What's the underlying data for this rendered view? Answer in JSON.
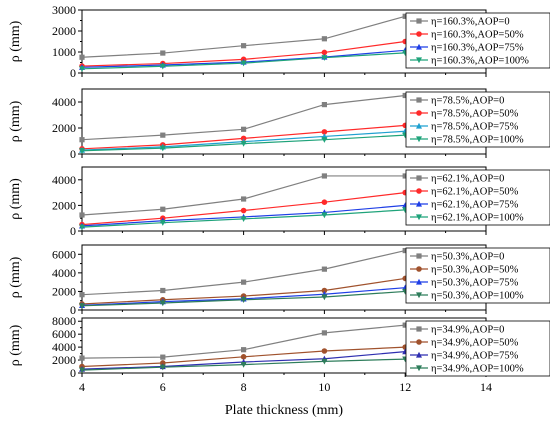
{
  "chart_data": [
    {
      "type": "line",
      "ylabel": "ρ (mm)",
      "ylim": [
        0,
        3000
      ],
      "yticks": [
        0,
        1000,
        2000,
        3000
      ],
      "x": [
        4,
        6,
        8,
        10,
        12
      ],
      "series": [
        {
          "name": "η=160.3%,AOP=0",
          "color": "#808080",
          "marker": "square",
          "values": [
            750,
            950,
            1300,
            1630,
            2700
          ]
        },
        {
          "name": "η=160.3%,AOP=50%",
          "color": "#ff2a2a",
          "marker": "circle",
          "values": [
            330,
            450,
            650,
            980,
            1500
          ]
        },
        {
          "name": "η=160.3%,AOP=75%",
          "color": "#1f3fe6",
          "marker": "triangle",
          "values": [
            270,
            380,
            520,
            760,
            1080
          ]
        },
        {
          "name": "η=160.3%,AOP=100%",
          "color": "#1fa37a",
          "marker": "tri-down",
          "values": [
            200,
            320,
            470,
            730,
            960
          ]
        }
      ]
    },
    {
      "type": "line",
      "ylabel": "ρ (mm)",
      "ylim": [
        0,
        5000
      ],
      "yticks": [
        0,
        2000,
        4000
      ],
      "x": [
        4,
        6,
        8,
        10,
        12
      ],
      "series": [
        {
          "name": "η=78.5%,AOP=0",
          "color": "#808080",
          "marker": "square",
          "values": [
            1100,
            1450,
            1900,
            3800,
            4500
          ]
        },
        {
          "name": "η=78.5%,AOP=50%",
          "color": "#ff2a2a",
          "marker": "circle",
          "values": [
            400,
            700,
            1200,
            1700,
            2200
          ]
        },
        {
          "name": "η=78.5%,AOP=75%",
          "color": "#1fa0d0",
          "marker": "triangle",
          "values": [
            300,
            550,
            950,
            1350,
            1750
          ]
        },
        {
          "name": "η=78.5%,AOP=100%",
          "color": "#1fa37a",
          "marker": "tri-down",
          "values": [
            250,
            450,
            800,
            1100,
            1450
          ]
        }
      ]
    },
    {
      "type": "line",
      "ylabel": "ρ (mm)",
      "ylim": [
        0,
        5000
      ],
      "yticks": [
        0,
        2000,
        4000
      ],
      "x": [
        4,
        6,
        8,
        10,
        12
      ],
      "series": [
        {
          "name": "η=62.1%,AOP=0",
          "color": "#808080",
          "marker": "square",
          "values": [
            1250,
            1700,
            2500,
            4300,
            4300
          ]
        },
        {
          "name": "η=62.1%,AOP=50%",
          "color": "#ff2a2a",
          "marker": "circle",
          "values": [
            500,
            1000,
            1600,
            2250,
            3000
          ]
        },
        {
          "name": "η=62.1%,AOP=75%",
          "color": "#1f3fe6",
          "marker": "triangle",
          "values": [
            400,
            800,
            1100,
            1450,
            2000
          ]
        },
        {
          "name": "η=62.1%,AOP=100%",
          "color": "#1fa37a",
          "marker": "tri-down",
          "values": [
            300,
            650,
            950,
            1250,
            1650
          ]
        }
      ]
    },
    {
      "type": "line",
      "ylabel": "ρ (mm)",
      "ylim": [
        0,
        7000
      ],
      "yticks": [
        0,
        2000,
        4000,
        6000
      ],
      "x": [
        4,
        6,
        8,
        10,
        12
      ],
      "series": [
        {
          "name": "η=50.3%,AOP=0",
          "color": "#808080",
          "marker": "square",
          "values": [
            1650,
            2100,
            3000,
            4400,
            6400
          ]
        },
        {
          "name": "η=50.3%,AOP=50%",
          "color": "#a0522d",
          "marker": "circle",
          "values": [
            650,
            1100,
            1500,
            2100,
            3400
          ]
        },
        {
          "name": "η=50.3%,AOP=75%",
          "color": "#1f3fe6",
          "marker": "triangle",
          "values": [
            500,
            900,
            1200,
            1700,
            2400
          ]
        },
        {
          "name": "η=50.3%,AOP=100%",
          "color": "#2e7d5b",
          "marker": "tri-down",
          "values": [
            450,
            750,
            1100,
            1400,
            2000
          ]
        }
      ]
    },
    {
      "type": "line",
      "ylabel": "ρ (mm)",
      "xlabel": "Plate thickness (mm)",
      "ylim": [
        0,
        8500
      ],
      "yticks": [
        0,
        2000,
        4000,
        6000,
        8000
      ],
      "xlim": [
        4,
        14
      ],
      "xticks": [
        4,
        6,
        8,
        10,
        12,
        14
      ],
      "x": [
        4,
        6,
        8,
        10,
        12
      ],
      "series": [
        {
          "name": "η=34.9%,AOP=0",
          "color": "#808080",
          "marker": "square",
          "values": [
            2300,
            2450,
            3600,
            6200,
            7400
          ]
        },
        {
          "name": "η=34.9%,AOP=50%",
          "color": "#a0522d",
          "marker": "circle",
          "values": [
            1000,
            1550,
            2500,
            3400,
            4000
          ]
        },
        {
          "name": "η=34.9%,AOP=75%",
          "color": "#2f2fb0",
          "marker": "triangle",
          "values": [
            600,
            1000,
            1700,
            2200,
            3300
          ]
        },
        {
          "name": "η=34.9%,AOP=100%",
          "color": "#2e7d5b",
          "marker": "tri-down",
          "values": [
            450,
            900,
            1300,
            1800,
            2150
          ]
        }
      ]
    }
  ]
}
